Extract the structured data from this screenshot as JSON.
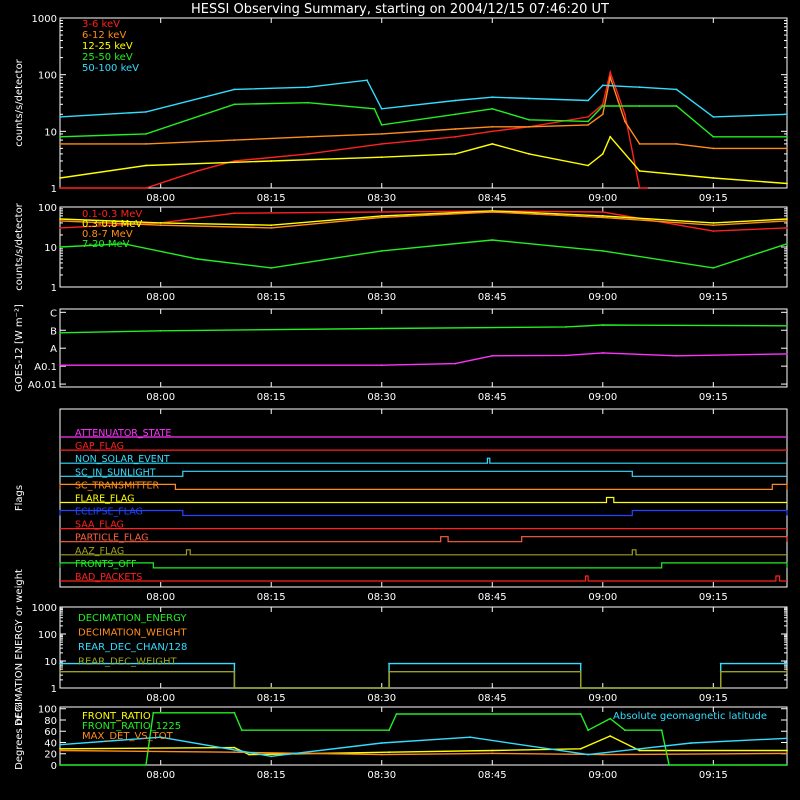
{
  "title": "HESSI Observing Summary, starting on 2004/12/15 07:46:20 UT",
  "time_ticks": [
    "08:00",
    "08:15",
    "08:30",
    "08:45",
    "09:00",
    "09:15"
  ],
  "colors": {
    "background": "#000000",
    "axes": "#ffffff",
    "red": "#ff2020",
    "orange": "#ff8c1a",
    "yellow": "#ffff00",
    "green": "#22ee22",
    "cyan": "#33ddff",
    "magenta": "#ff33ff",
    "blue": "#2244ff",
    "olive": "#a0a020",
    "salmon": "#ff6040"
  },
  "chart_data": [
    {
      "id": "lowE",
      "type": "line",
      "ylabel": "counts/s/detector",
      "yscale": "log",
      "ylim": [
        1,
        1000
      ],
      "y_tick_labels": [
        "1",
        "10",
        "100",
        "1000"
      ],
      "xlim": [
        "07:46:20",
        "09:25:00"
      ],
      "series": [
        {
          "name": "3-6 keV",
          "color": "#ff2020",
          "x": [
            "07:46",
            "07:58",
            "08:05",
            "08:10",
            "08:20",
            "08:30",
            "08:40",
            "08:45",
            "08:50",
            "08:58",
            "09:00",
            "09:01",
            "09:03",
            "09:05",
            "09:06"
          ],
          "y": [
            1,
            1,
            2,
            3,
            4,
            6,
            8,
            10,
            12,
            18,
            30,
            110,
            20,
            1,
            1
          ]
        },
        {
          "name": "6-12 keV",
          "color": "#ff8c1a",
          "x": [
            "07:46",
            "07:58",
            "08:10",
            "08:20",
            "08:30",
            "08:40",
            "08:45",
            "08:50",
            "08:58",
            "09:00",
            "09:01",
            "09:03",
            "09:05",
            "09:10",
            "09:15",
            "09:25"
          ],
          "y": [
            6,
            6,
            7,
            8,
            9,
            11,
            12,
            12,
            13,
            20,
            90,
            15,
            6,
            6,
            5,
            5
          ]
        },
        {
          "name": "12-25 keV",
          "color": "#ffff00",
          "x": [
            "07:46",
            "07:58",
            "08:15",
            "08:30",
            "08:40",
            "08:45",
            "08:50",
            "08:58",
            "09:00",
            "09:01",
            "09:05",
            "09:15",
            "09:25"
          ],
          "y": [
            1.5,
            2.5,
            3,
            3.5,
            4,
            6,
            4,
            2.5,
            4,
            8,
            2,
            1.5,
            1.2
          ]
        },
        {
          "name": "25-50 keV",
          "color": "#22ee22",
          "x": [
            "07:46",
            "07:58",
            "08:10",
            "08:20",
            "08:29",
            "08:30",
            "08:40",
            "08:45",
            "08:50",
            "08:58",
            "09:00",
            "09:05",
            "09:10",
            "09:15",
            "09:25"
          ],
          "y": [
            8,
            9,
            30,
            32,
            25,
            13,
            20,
            25,
            16,
            15,
            28,
            28,
            28,
            8,
            8
          ]
        },
        {
          "name": "50-100 keV",
          "color": "#33ddff",
          "x": [
            "07:46",
            "07:58",
            "08:10",
            "08:20",
            "08:28",
            "08:30",
            "08:40",
            "08:45",
            "08:50",
            "08:58",
            "09:00",
            "09:05",
            "09:10",
            "09:15",
            "09:25"
          ],
          "y": [
            18,
            22,
            55,
            60,
            80,
            25,
            35,
            40,
            38,
            35,
            65,
            60,
            55,
            18,
            20
          ]
        }
      ]
    },
    {
      "id": "highE",
      "type": "line",
      "ylabel": "counts/s/detector",
      "yscale": "log",
      "ylim": [
        1,
        100
      ],
      "y_tick_labels": [
        "1",
        "10",
        "100"
      ],
      "xlim": [
        "07:46:20",
        "09:25:00"
      ],
      "series": [
        {
          "name": "0.1-0.3 MeV",
          "color": "#ff2020",
          "x": [
            "07:46",
            "08:00",
            "08:10",
            "08:30",
            "08:45",
            "09:00",
            "09:15",
            "09:25"
          ],
          "y": [
            30,
            40,
            70,
            75,
            80,
            75,
            25,
            30
          ]
        },
        {
          "name": "0.3-0.8 MeV",
          "color": "#ffff00",
          "x": [
            "07:46",
            "08:00",
            "08:15",
            "08:30",
            "08:45",
            "09:00",
            "09:15",
            "09:25"
          ],
          "y": [
            50,
            40,
            35,
            60,
            80,
            60,
            40,
            50
          ]
        },
        {
          "name": "0.8-7 MeV",
          "color": "#ff8c1a",
          "x": [
            "07:46",
            "08:00",
            "08:15",
            "08:30",
            "08:45",
            "09:00",
            "09:15",
            "09:25"
          ],
          "y": [
            45,
            35,
            30,
            55,
            75,
            55,
            35,
            45
          ]
        },
        {
          "name": "7-20 MeV",
          "color": "#22ee22",
          "x": [
            "07:46",
            "07:55",
            "08:05",
            "08:15",
            "08:30",
            "08:45",
            "09:00",
            "09:15",
            "09:25"
          ],
          "y": [
            10,
            12,
            5,
            3,
            8,
            15,
            8,
            3,
            12
          ]
        }
      ]
    },
    {
      "id": "goes",
      "type": "line",
      "ylabel": "GOES-12 [W m⁻²]",
      "y_tick_labels": [
        "A0.01",
        "A0.1",
        "A",
        "B",
        "C"
      ],
      "ylim": [
        0,
        4
      ],
      "xlim": [
        "07:46:20",
        "09:25:00"
      ],
      "series": [
        {
          "color": "#22ee22",
          "x": [
            "07:46",
            "08:00",
            "08:30",
            "08:55",
            "09:00",
            "09:25"
          ],
          "y": [
            2.78,
            2.88,
            3.0,
            3.08,
            3.18,
            3.14
          ]
        },
        {
          "color": "#ff33ff",
          "x": [
            "07:46",
            "08:30",
            "08:40",
            "08:45",
            "08:55",
            "09:00",
            "09:10",
            "09:25"
          ],
          "y": [
            1.12,
            1.12,
            1.2,
            1.6,
            1.62,
            1.75,
            1.6,
            1.7
          ]
        }
      ]
    },
    {
      "id": "flags",
      "type": "line",
      "ylabel": "Flags",
      "xlim": [
        "07:46:20",
        "09:25:00"
      ],
      "flags": [
        {
          "label": "ATTENUATOR_STATE",
          "color": "#ff33ff",
          "on": []
        },
        {
          "label": "GAP_FLAG",
          "color": "#ff2020",
          "on": []
        },
        {
          "label": "NON_SOLAR_EVENT",
          "color": "#33ddff",
          "on": [
            [
              "08:44:20",
              "08:44:40"
            ]
          ]
        },
        {
          "label": "SC_IN_SUNLIGHT",
          "color": "#33ddff",
          "on": [
            [
              "08:03",
              "09:04"
            ]
          ]
        },
        {
          "label": "SC_TRANSMITTER",
          "color": "#ff8c1a",
          "on": [
            [
              "07:46:20",
              "08:02"
            ],
            [
              "09:23",
              "09:25"
            ]
          ]
        },
        {
          "label": "FLARE_FLAG",
          "color": "#ffff00",
          "on": [
            [
              "09:00:30",
              "09:01:30"
            ]
          ]
        },
        {
          "label": "ECLIPSE_FLAG",
          "color": "#2244ff",
          "on": [
            [
              "07:46:20",
              "08:03"
            ],
            [
              "09:04",
              "09:25"
            ]
          ]
        },
        {
          "label": "SAA_FLAG",
          "color": "#ff2020",
          "on": []
        },
        {
          "label": "PARTICLE_FLAG",
          "color": "#ff6040",
          "on": [
            [
              "08:38",
              "08:39"
            ],
            [
              "08:49",
              "09:25"
            ]
          ]
        },
        {
          "label": "AAZ_FLAG",
          "color": "#a0a020",
          "on": [
            [
              "08:03:30",
              "08:04"
            ],
            [
              "09:04",
              "09:04:30"
            ]
          ]
        },
        {
          "label": "FRONTS_OFF",
          "color": "#22ee22",
          "on": [
            [
              "07:46:20",
              "07:59"
            ],
            [
              "09:08",
              "09:25"
            ]
          ]
        },
        {
          "label": "BAD_PACKETS",
          "color": "#ff2020",
          "on": [
            [
              "08:57:40",
              "08:58"
            ],
            [
              "09:23:30",
              "09:24"
            ]
          ]
        }
      ]
    },
    {
      "id": "decim",
      "type": "line",
      "ylabel": "DECIMATION ENERGY or weight",
      "yscale": "log",
      "ylim": [
        1,
        1000
      ],
      "y_tick_labels": [
        "1",
        "10",
        "100",
        "1000"
      ],
      "xlim": [
        "07:46:20",
        "09:25:00"
      ],
      "series": [
        {
          "name": "DECIMATION_ENERGY",
          "color": "#22ee22",
          "values": []
        },
        {
          "name": "DECIMATION_WEIGHT",
          "color": "#ff8c1a",
          "values": []
        },
        {
          "name": "REAR_DEC_CHAN/128",
          "color": "#33ddff",
          "x": [
            "07:46",
            "08:10",
            "08:10",
            "08:31",
            "08:31",
            "08:57",
            "08:57",
            "09:16",
            "09:16",
            "09:25"
          ],
          "y": [
            8,
            8,
            1,
            1,
            8,
            8,
            1,
            1,
            8,
            8
          ]
        },
        {
          "name": "REAR_DEC_WEIGHT",
          "color": "#a0a020",
          "x": [
            "07:46",
            "08:10",
            "08:10",
            "08:31",
            "08:31",
            "08:57",
            "08:57",
            "09:16",
            "09:16",
            "09:25"
          ],
          "y": [
            4,
            4,
            1,
            1,
            4,
            4,
            1,
            1,
            4,
            4
          ]
        }
      ]
    },
    {
      "id": "ratio",
      "type": "line",
      "ylabel": "Degrees or %",
      "ylim": [
        0,
        100
      ],
      "y_tick_labels": [
        "0",
        "20",
        "40",
        "60",
        "80",
        "100"
      ],
      "xlim": [
        "07:46:20",
        "09:25:00"
      ],
      "annotation": "Absolute geomagnetic latitude",
      "series": [
        {
          "name": "FRONT_RATIO",
          "color": "#ffff00",
          "x": [
            "07:46",
            "08:10",
            "08:12",
            "08:31",
            "08:45",
            "08:57",
            "09:01",
            "09:05",
            "09:25"
          ],
          "y": [
            28,
            30,
            18,
            22,
            25,
            28,
            50,
            25,
            25
          ]
        },
        {
          "name": "FRONT_RATIO_1225",
          "color": "#22ee22",
          "x": [
            "07:46",
            "07:58",
            "07:59",
            "08:10",
            "08:11",
            "08:31",
            "08:32",
            "08:57",
            "08:58",
            "09:01",
            "09:03",
            "09:08",
            "09:09",
            "09:25"
          ],
          "y": [
            0,
            0,
            90,
            90,
            60,
            60,
            88,
            88,
            60,
            80,
            60,
            60,
            0,
            0
          ]
        },
        {
          "name": "MAX_DET_VS_TOT",
          "color": "#ff8c1a",
          "x": [
            "07:46",
            "08:10",
            "08:30",
            "08:45",
            "09:00",
            "09:25"
          ],
          "y": [
            25,
            22,
            18,
            20,
            18,
            20
          ]
        },
        {
          "name": "Absolute geomagnetic latitude",
          "color": "#33ddff",
          "x": [
            "07:46",
            "08:00",
            "08:15",
            "08:30",
            "08:42",
            "08:58",
            "09:12",
            "09:25"
          ],
          "y": [
            35,
            48,
            15,
            38,
            48,
            18,
            38,
            46
          ]
        }
      ]
    }
  ]
}
